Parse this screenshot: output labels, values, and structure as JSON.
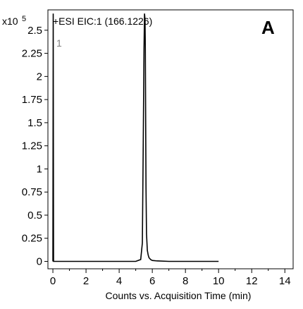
{
  "chart_data": {
    "type": "line",
    "title": "+ESI  EIC:1  (166.1226)",
    "panel_label": "A",
    "trace_label": "1",
    "y_multiplier_base": "x10",
    "y_multiplier_exp": "5",
    "xlabel": "Counts vs. Acquisition Time (min)",
    "xlim": [
      -0.3,
      14.5
    ],
    "ylim": [
      -0.08,
      2.72
    ],
    "xticks": [
      0,
      2,
      4,
      6,
      8,
      10,
      12,
      14
    ],
    "xtick_labels": [
      "0",
      "2",
      "4",
      "6",
      "8",
      "10",
      "12",
      "14"
    ],
    "yticks": [
      0,
      0.25,
      0.5,
      0.75,
      1,
      1.25,
      1.5,
      1.75,
      2,
      2.25,
      2.5
    ],
    "ytick_labels": [
      "0",
      "0.25",
      "0.5",
      "0.75",
      "1",
      "1.25",
      "1.5",
      "1.75",
      "2",
      "2.25",
      "2.5"
    ],
    "series": [
      {
        "x": [
          0.0,
          0.02,
          0.04,
          1.0,
          2.0,
          3.0,
          4.0,
          5.0,
          5.3,
          5.4,
          5.45,
          5.5,
          5.53,
          5.56,
          5.58,
          5.6,
          5.62,
          5.65,
          5.7,
          5.75,
          5.8,
          5.9,
          6.0,
          6.3,
          7.0,
          8.0,
          9.0,
          10.0
        ],
        "y": [
          0.0,
          2.68,
          0.0,
          0.0,
          0.0,
          0.0,
          0.0,
          0.0,
          0.02,
          0.2,
          1.2,
          2.3,
          2.68,
          2.62,
          2.3,
          1.5,
          0.8,
          0.3,
          0.12,
          0.07,
          0.04,
          0.02,
          0.01,
          0.005,
          0.0,
          0.0,
          0.0,
          0.0
        ]
      }
    ]
  }
}
